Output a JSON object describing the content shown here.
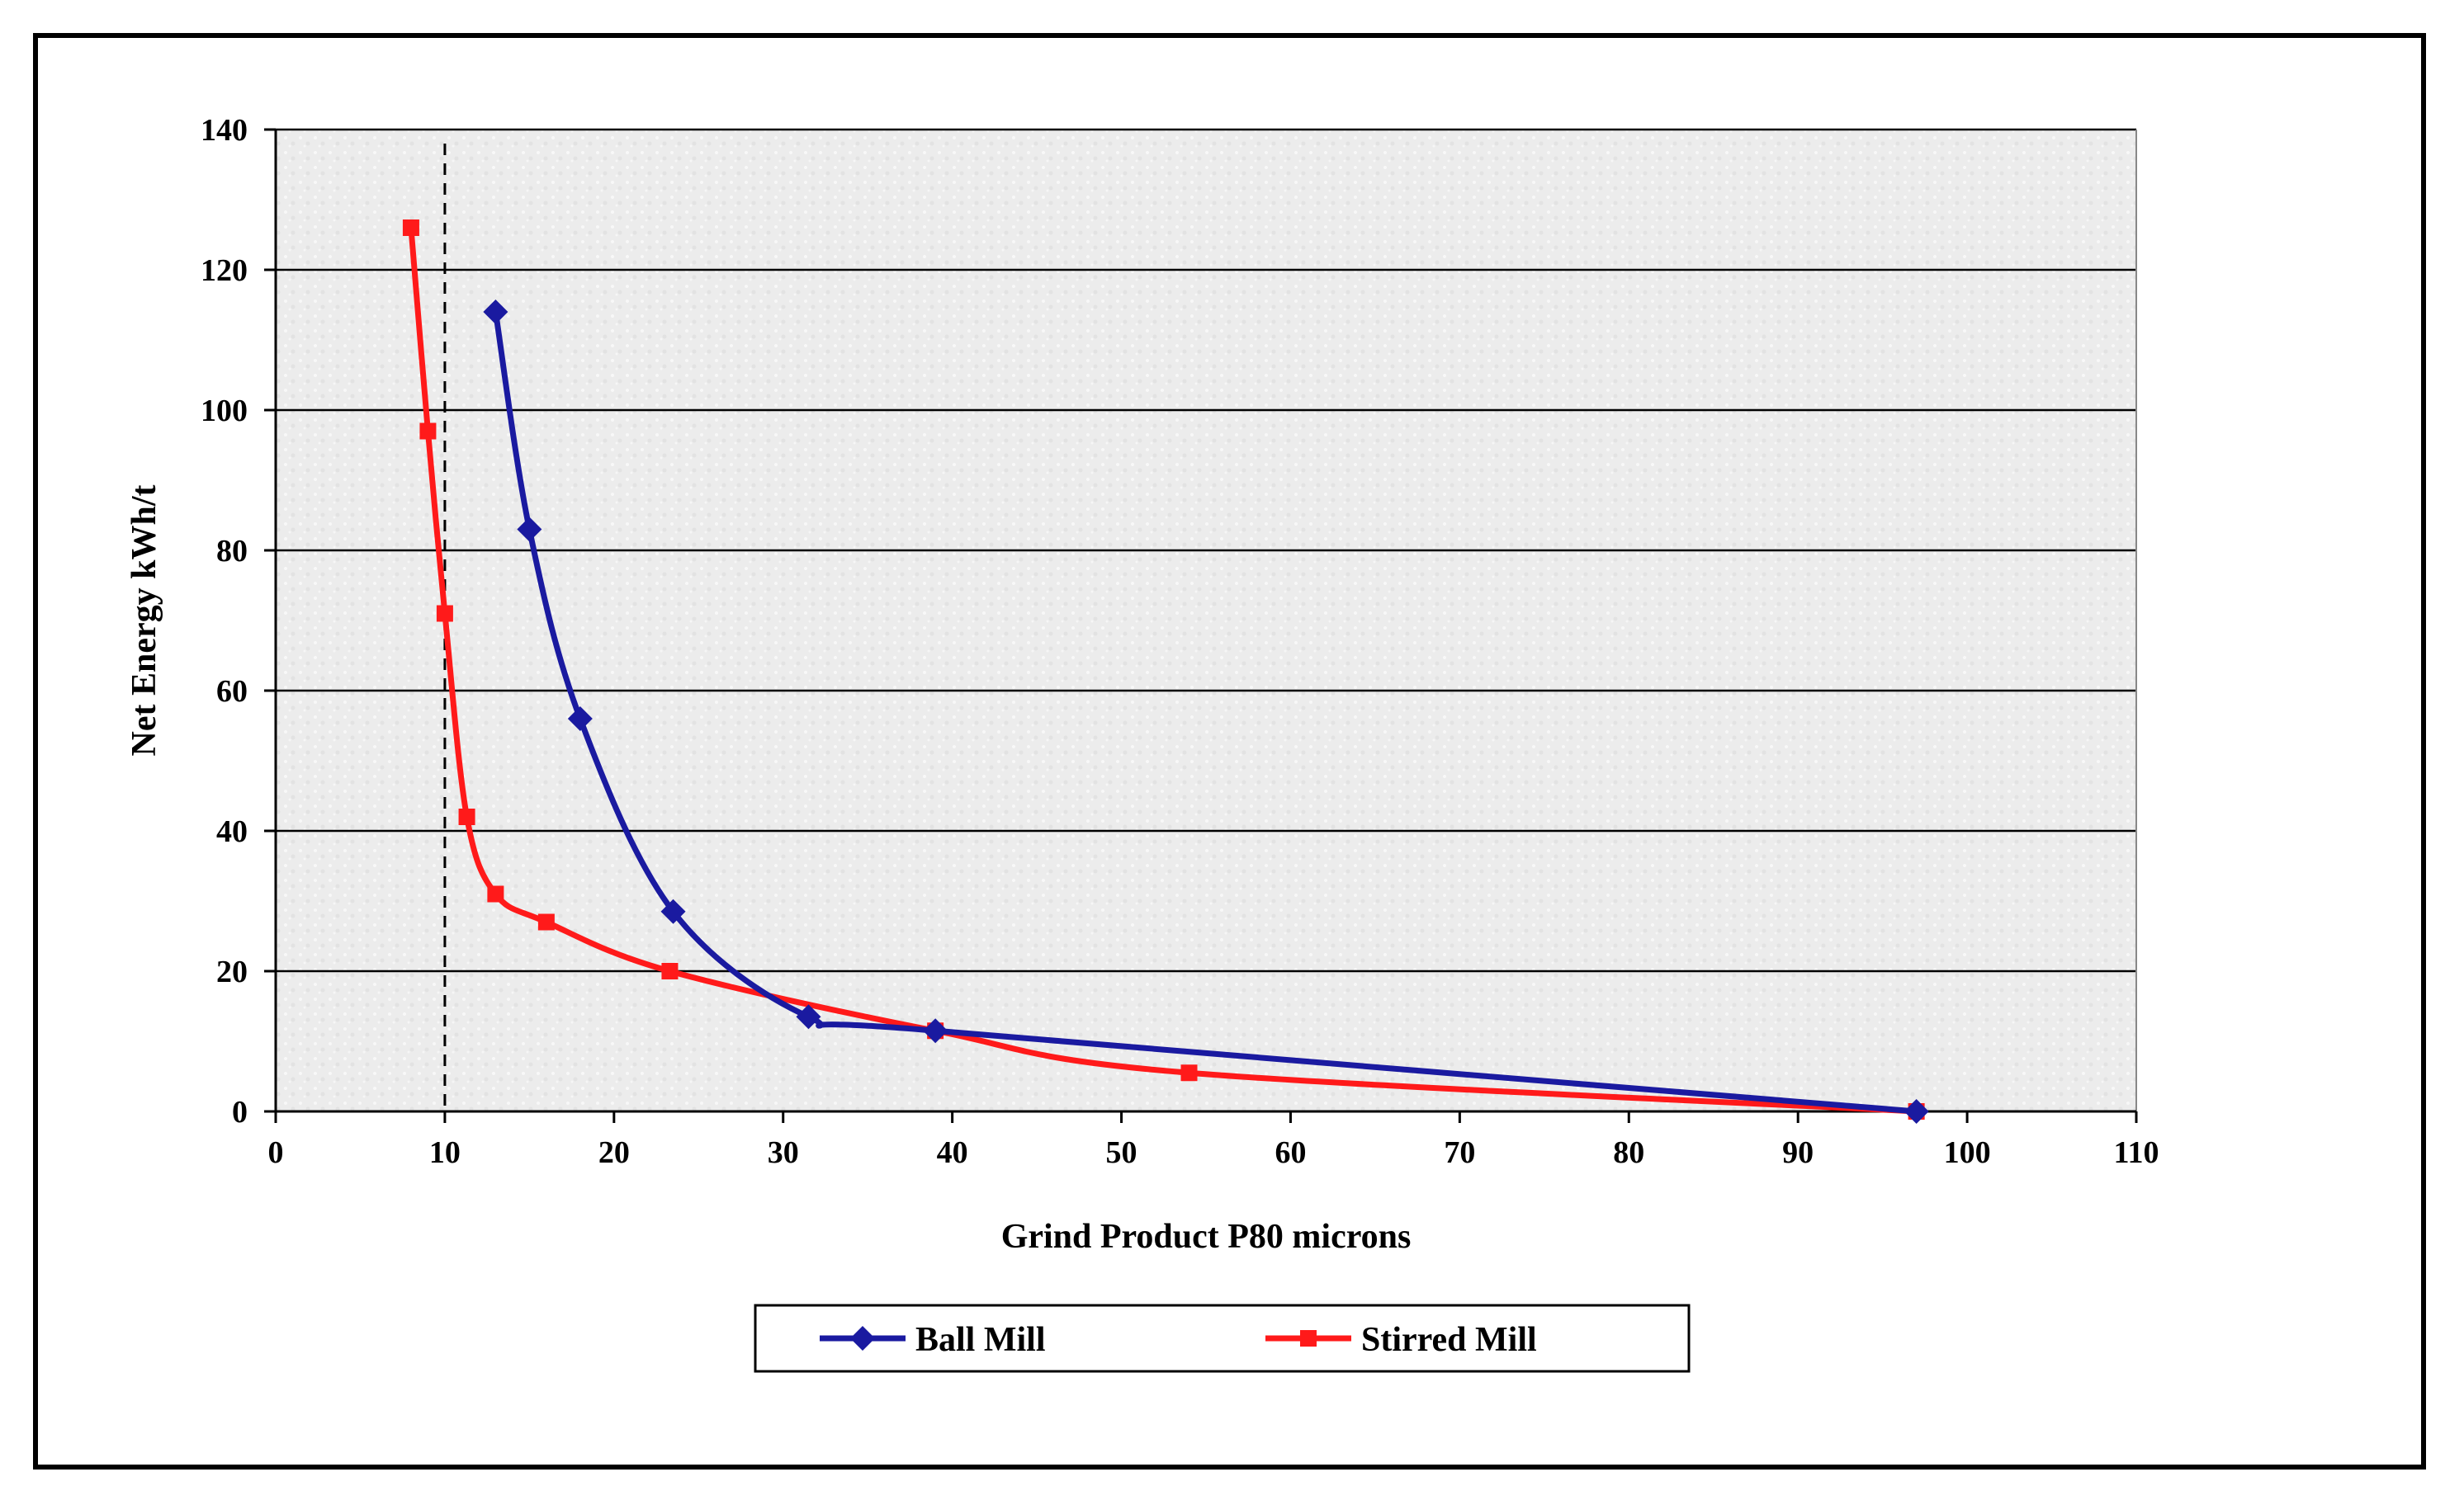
{
  "chart_data": {
    "type": "line",
    "title": "",
    "xlabel": "Grind Product P80 microns",
    "ylabel": "Net Energy kWh/t",
    "xlim": [
      0,
      110
    ],
    "ylim": [
      0,
      140
    ],
    "x_ticks": [
      0,
      10,
      20,
      30,
      40,
      50,
      60,
      70,
      80,
      90,
      100,
      110
    ],
    "y_ticks": [
      0,
      20,
      40,
      60,
      80,
      100,
      120,
      140
    ],
    "x_tick_labels": [
      "0",
      "10",
      "20",
      "30",
      "40",
      "50",
      "60",
      "70",
      "80",
      "90",
      "100",
      "110"
    ],
    "y_tick_labels": [
      "0",
      "20",
      "40",
      "60",
      "80",
      "100",
      "120",
      "140"
    ],
    "grid": "horizontal",
    "reference_line": {
      "x": 10,
      "style": "dashed"
    },
    "legend_position": "bottom-center",
    "series": [
      {
        "name": "Ball Mill",
        "color": "#1a1aa0",
        "marker": "diamond",
        "x": [
          13,
          15,
          18,
          23.5,
          31.5,
          39,
          97
        ],
        "y": [
          114,
          83,
          56,
          28.5,
          13.5,
          11.5,
          0
        ]
      },
      {
        "name": "Stirred Mill",
        "color": "#ff1a1a",
        "marker": "square",
        "x": [
          8,
          9,
          10,
          11.3,
          13,
          16,
          23.3,
          39,
          54,
          97
        ],
        "y": [
          126,
          97,
          71,
          42,
          31,
          27,
          20,
          11.5,
          5.5,
          0
        ]
      }
    ]
  }
}
